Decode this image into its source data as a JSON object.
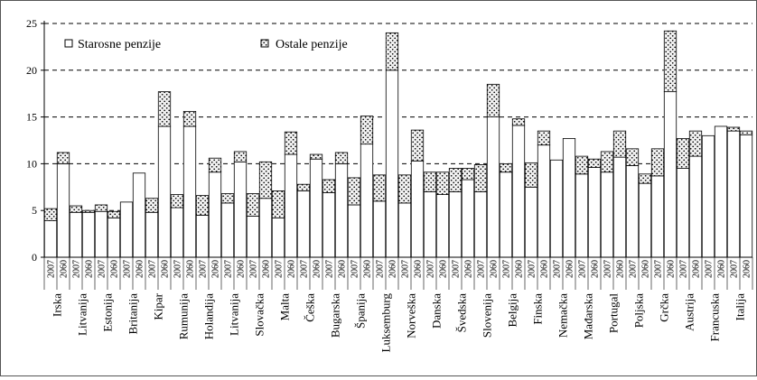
{
  "chart_data": {
    "type": "bar",
    "stacked": true,
    "title": "",
    "xlabel": "",
    "ylabel": "",
    "ylim": [
      0,
      25
    ],
    "yticks": [
      0,
      5,
      10,
      15,
      20,
      25
    ],
    "grid": "dashed horizontal",
    "legend_position": "top-left",
    "year_labels": [
      "2007",
      "2060"
    ],
    "countries": [
      "Irska",
      "Litvanija",
      "Estonija",
      "Britanija",
      "Kipar",
      "Rumunija",
      "Holandija",
      "Litvanija",
      "Slovačka",
      "Malta",
      "Češka",
      "Bugarska",
      "Španija",
      "Luksemburg",
      "Norveška",
      "Danska",
      "Švedska",
      "Slovenija",
      "Belgija",
      "Finska",
      "Nemačka",
      "Mađarska",
      "Portugal",
      "Poljska",
      "Grčka",
      "Austrija",
      "Francuska",
      "Italija"
    ],
    "series": [
      {
        "name": "Starosne penzije",
        "color": "#ffffff",
        "values": [
          3.9,
          10.0,
          4.8,
          4.8,
          4.9,
          4.2,
          5.9,
          9.0,
          4.8,
          14.0,
          5.3,
          14.0,
          4.5,
          9.1,
          5.8,
          10.2,
          4.4,
          6.3,
          4.2,
          11.0,
          7.1,
          10.5,
          6.9,
          10.0,
          5.6,
          12.1,
          6.0,
          20.0,
          5.8,
          10.3,
          7.0,
          6.7,
          7.0,
          8.3,
          7.0,
          15.0,
          9.1,
          14.1,
          7.5,
          12.0,
          10.4,
          12.7,
          8.9,
          9.6,
          9.1,
          10.7,
          9.8,
          7.9,
          8.7,
          17.7,
          9.5,
          10.8,
          13.0,
          14.0,
          13.5,
          13.1
        ]
      },
      {
        "name": "Ostale penzije",
        "color": "#d8d8d8",
        "values": [
          1.3,
          1.2,
          0.7,
          0.2,
          0.7,
          0.7,
          0.0,
          0.0,
          1.5,
          3.7,
          1.4,
          1.6,
          2.1,
          1.5,
          1.0,
          1.1,
          2.4,
          3.9,
          2.9,
          2.4,
          0.7,
          0.5,
          1.4,
          1.2,
          2.9,
          3.0,
          2.8,
          4.0,
          3.0,
          3.3,
          2.1,
          2.4,
          2.5,
          1.2,
          2.9,
          3.5,
          0.9,
          0.7,
          2.6,
          1.5,
          0.0,
          0.0,
          1.9,
          0.9,
          2.2,
          2.8,
          1.8,
          1.0,
          2.9,
          6.5,
          3.2,
          2.7,
          0.0,
          0.0,
          0.4,
          0.4
        ]
      }
    ]
  }
}
